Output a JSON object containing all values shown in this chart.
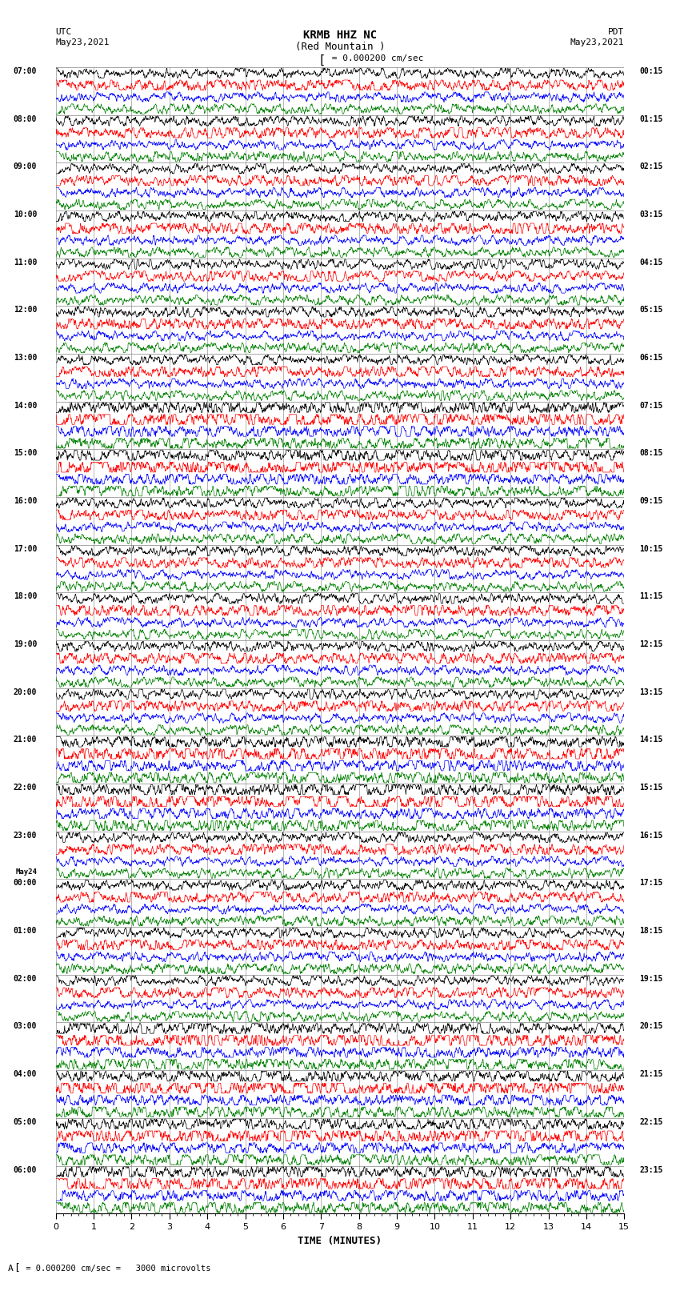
{
  "title_line1": "KRMB HHZ NC",
  "title_line2": "(Red Mountain )",
  "scale_label": "= 0.000200 cm/sec",
  "bottom_label": "= 0.000200 cm/sec =   3000 microvolts",
  "xlabel": "TIME (MINUTES)",
  "left_header_line1": "UTC",
  "left_header_line2": "May23,2021",
  "right_header_line1": "PDT",
  "right_header_line2": "May23,2021",
  "left_times": [
    "07:00",
    "08:00",
    "09:00",
    "10:00",
    "11:00",
    "12:00",
    "13:00",
    "14:00",
    "15:00",
    "16:00",
    "17:00",
    "18:00",
    "19:00",
    "20:00",
    "21:00",
    "22:00",
    "23:00",
    "May24",
    "00:00",
    "01:00",
    "02:00",
    "03:00",
    "04:00",
    "05:00",
    "06:00"
  ],
  "right_times": [
    "00:15",
    "01:15",
    "02:15",
    "03:15",
    "04:15",
    "05:15",
    "06:15",
    "07:15",
    "08:15",
    "09:15",
    "10:15",
    "11:15",
    "12:15",
    "13:15",
    "14:15",
    "15:15",
    "16:15",
    "17:15",
    "18:15",
    "19:15",
    "20:15",
    "21:15",
    "22:15",
    "23:15"
  ],
  "num_hours": 24,
  "traces_per_hour": 4,
  "trace_colors": [
    "black",
    "red",
    "blue",
    "green"
  ],
  "xmin": 0,
  "xmax": 15,
  "background_color": "white",
  "figsize": [
    8.5,
    16.13
  ],
  "dpi": 100,
  "grid_color": "#999999",
  "grid_linewidth": 0.5
}
